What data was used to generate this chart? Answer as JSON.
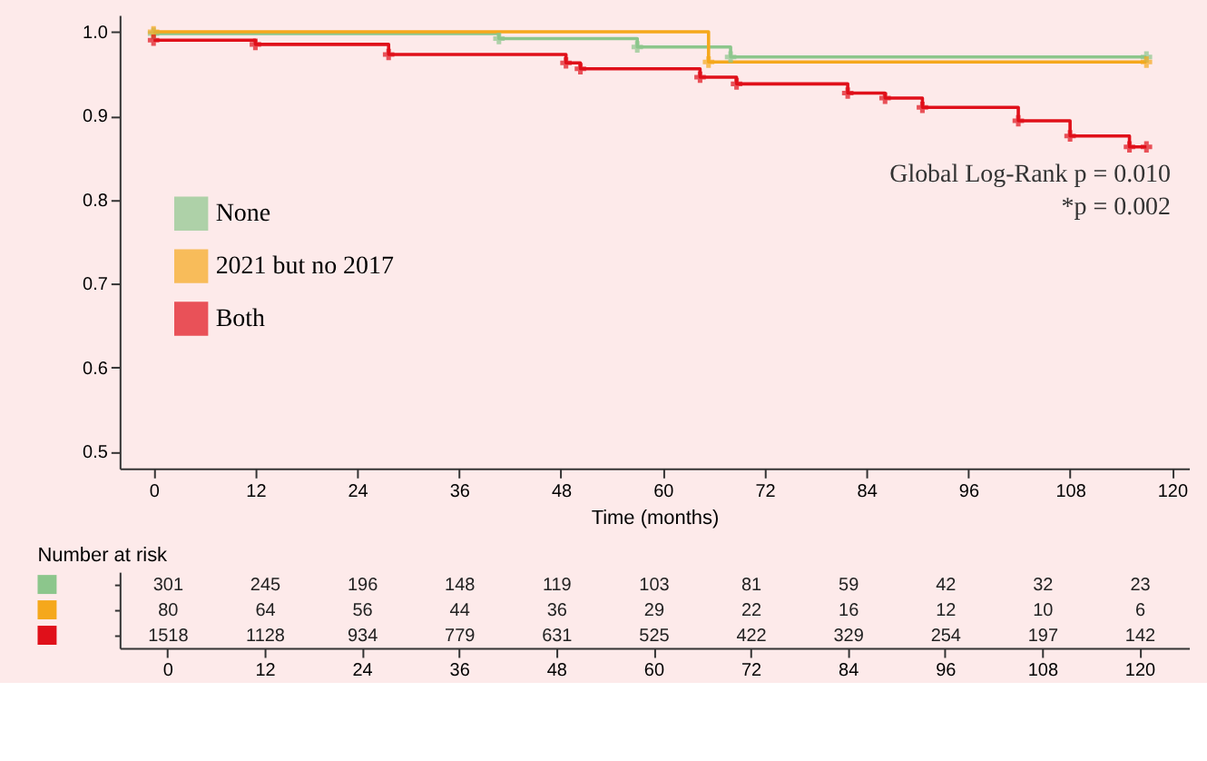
{
  "chart_data": [
    {
      "type": "step",
      "xlabel": "Time (months)",
      "xlim": [
        -4,
        122
      ],
      "xticks": [
        0,
        12,
        24,
        36,
        48,
        60,
        72,
        84,
        96,
        108,
        120
      ],
      "ylim": [
        0.48,
        1.02
      ],
      "yticks": [
        0.5,
        0.6,
        0.7,
        0.8,
        0.9,
        {
          "value": 1.0,
          "label": "1.0"
        }
      ],
      "grid": false,
      "legend": "left",
      "marker": "cross",
      "line_style": "solid",
      "annotations": [
        "Global Log-Rank p = 0.010",
        "*p = 0.002"
      ],
      "series": [
        {
          "name": "None",
          "color": "#8cc68c",
          "x": [
            0,
            40.7,
            57,
            68,
            117
          ],
          "values": [
            0.998,
            0.992,
            0.982,
            0.97,
            0.97
          ]
        },
        {
          "name": "2021 but no 2017",
          "color": "#f5a81c",
          "x": [
            0,
            65.4,
            117
          ],
          "values": [
            1.0,
            0.964,
            0.964
          ]
        },
        {
          "name": "Both",
          "color": "#e0101a",
          "x": [
            0,
            12,
            27.7,
            48.6,
            50.3,
            64.4,
            68.7,
            81.8,
            86.2,
            90.6,
            101.9,
            108,
            115,
            117
          ],
          "values": [
            0.99,
            0.985,
            0.973,
            0.963,
            0.956,
            0.946,
            0.938,
            0.927,
            0.921,
            0.91,
            0.894,
            0.876,
            0.863,
            0.863
          ]
        }
      ]
    },
    {
      "type": "heatmap",
      "title": "Number at risk",
      "categories": [
        "0",
        "12",
        "24",
        "36",
        "48",
        "60",
        "72",
        "84",
        "96",
        "108",
        "120"
      ],
      "y_categories": [
        null,
        null,
        null
      ],
      "colors": [
        "#8cc68c",
        "#f5a81c",
        "#e0101a"
      ],
      "data_labels": true,
      "cells": [
        [
          301,
          245,
          196,
          148,
          119,
          103,
          81,
          59,
          42,
          32,
          23
        ],
        [
          80,
          64,
          56,
          44,
          36,
          29,
          22,
          16,
          12,
          10,
          6
        ],
        [
          1518,
          1128,
          934,
          779,
          631,
          525,
          422,
          329,
          254,
          197,
          142
        ]
      ]
    }
  ]
}
